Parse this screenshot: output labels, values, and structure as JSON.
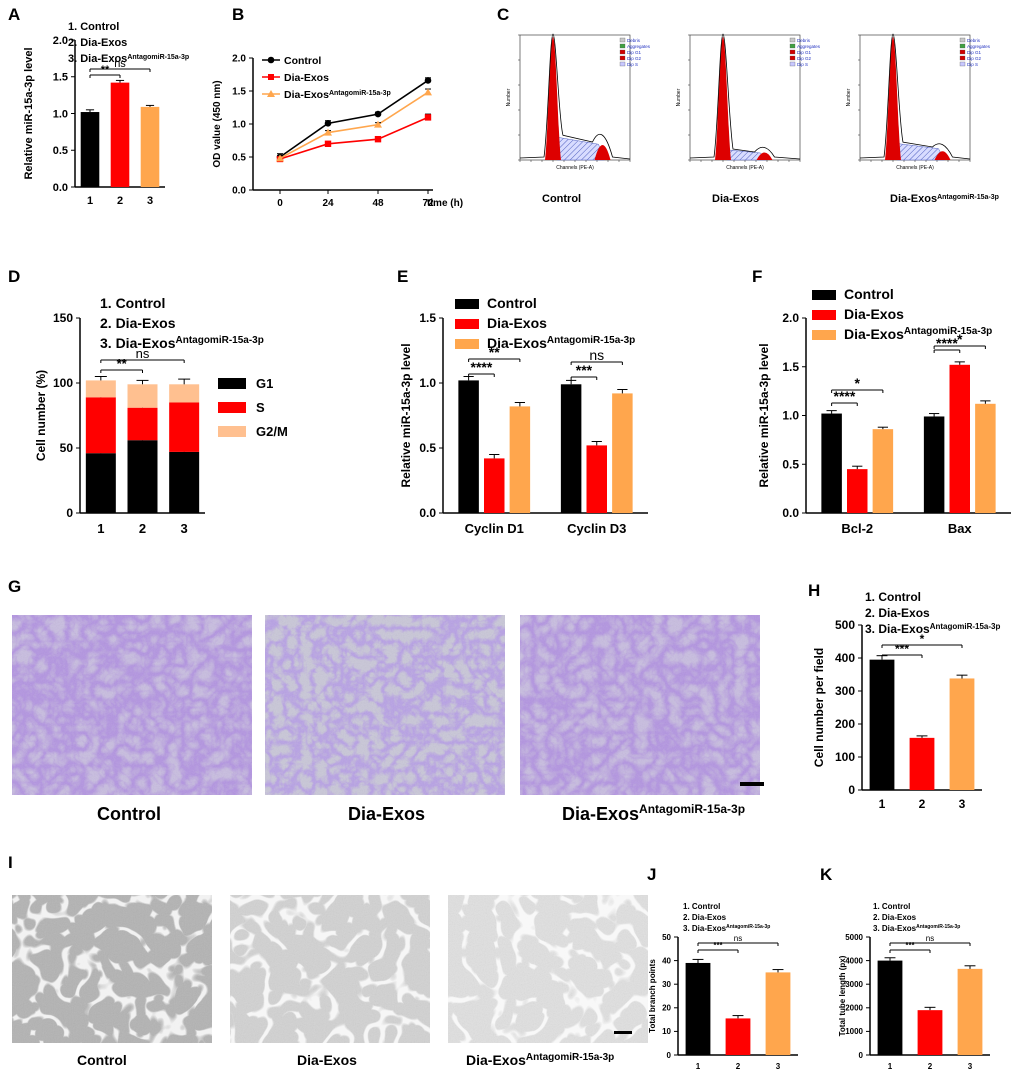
{
  "figure": {
    "sup": "AntagomiR-15a-3p",
    "micro": {
      "Control": "Control",
      "Dia-Exos": "Dia-Exos"
    }
  },
  "chart_data": [
    {
      "id": "A",
      "panel_label": "A",
      "type": "bar",
      "categories": [
        "1",
        "2",
        "3"
      ],
      "values": [
        1.02,
        1.42,
        1.09
      ],
      "errors": [
        0.03,
        0.03,
        0.02
      ],
      "colors": [
        "#000000",
        "#ff0000",
        "#ffa64d"
      ],
      "ylabel": "Relative miR-15a-3p level",
      "ylim": [
        0,
        2.0
      ],
      "yticks": [
        "0.0",
        "0.5",
        "1.0",
        "1.5",
        "2.0"
      ],
      "legend": [
        "1. Control",
        "2. Dia-Exos",
        "3. Dia-Exos"
      ],
      "significance": [
        {
          "pair": [
            1,
            2
          ],
          "label": "**"
        },
        {
          "pair": [
            1,
            3
          ],
          "label": "ns"
        }
      ]
    },
    {
      "id": "B",
      "panel_label": "B",
      "type": "line",
      "x": [
        0,
        24,
        48,
        72
      ],
      "xticks": [
        "0",
        "24",
        "48",
        "72"
      ],
      "xlabel": "time (h)",
      "ylabel": "OD value (450 nm)",
      "ylim": [
        0,
        2.0
      ],
      "yticks": [
        "0.0",
        "0.5",
        "1.0",
        "1.5",
        "2.0"
      ],
      "series": [
        {
          "name": "Control",
          "values": [
            0.5,
            1.01,
            1.15,
            1.66
          ],
          "errors": [
            0.05,
            0.04,
            0.03,
            0.04
          ],
          "color": "#000000",
          "marker": "circle"
        },
        {
          "name": "Dia-Exos",
          "values": [
            0.47,
            0.7,
            0.77,
            1.1
          ],
          "errors": [
            0.04,
            0.03,
            0.03,
            0.05
          ],
          "color": "#ff0000",
          "marker": "square"
        },
        {
          "name": "Dia-Exos",
          "values": [
            0.48,
            0.87,
            0.99,
            1.48
          ],
          "errors": [
            0.04,
            0.03,
            0.03,
            0.05
          ],
          "color": "#ffa64d",
          "marker": "triangle"
        }
      ]
    },
    {
      "id": "C",
      "panel_label": "C",
      "type": "area",
      "legend_items": [
        "Debris",
        "Aggregates",
        "Dip G1",
        "Dip G2",
        "Dip S"
      ],
      "legend_colors": [
        "#c8c8c8",
        "#40a040",
        "#d00000",
        "#d00000",
        "#c8c8ff"
      ],
      "ylabel": "Number",
      "xlabel": "Channels (PE-A)",
      "histograms": [
        {
          "name": "Control",
          "g2_height": 0.12,
          "s_height": 0.18
        },
        {
          "name": "Dia-Exos",
          "g2_height": 0.06,
          "s_height": 0.08
        },
        {
          "name": "Dia-Exos",
          "g2_height": 0.07,
          "s_height": 0.13
        }
      ]
    },
    {
      "id": "D",
      "panel_label": "D",
      "type": "bar",
      "categories": [
        "1",
        "2",
        "3"
      ],
      "series": [
        {
          "name": "G1",
          "values": [
            46,
            56,
            47
          ],
          "color": "#000000"
        },
        {
          "name": "S",
          "values": [
            43,
            25,
            38
          ],
          "color": "#ff0000"
        },
        {
          "name": "G2/M",
          "values": [
            13,
            18,
            14
          ],
          "color": "#ffc090"
        }
      ],
      "errors": [
        [
          3,
          3,
          3
        ],
        [
          3,
          3,
          3
        ],
        [
          3,
          3,
          4
        ]
      ],
      "ylabel": "Cell number (%)",
      "ylim": [
        0,
        150
      ],
      "yticks": [
        "0",
        "50",
        "100",
        "150"
      ],
      "legend": [
        "1. Control",
        "2. Dia-Exos",
        "3. Dia-Exos"
      ],
      "significance": [
        {
          "pair": [
            1,
            2
          ],
          "label": "**"
        },
        {
          "pair": [
            1,
            3
          ],
          "label": "ns"
        }
      ]
    },
    {
      "id": "E",
      "panel_label": "E",
      "type": "bar",
      "categories": [
        "Cyclin D1",
        "Cyclin D3"
      ],
      "series": [
        {
          "name": "Control",
          "values": [
            1.02,
            0.99
          ],
          "errors": [
            0.03,
            0.03
          ],
          "color": "#000000"
        },
        {
          "name": "Dia-Exos",
          "values": [
            0.42,
            0.52
          ],
          "errors": [
            0.03,
            0.03
          ],
          "color": "#ff0000"
        },
        {
          "name": "Dia-Exos",
          "values": [
            0.82,
            0.92
          ],
          "errors": [
            0.03,
            0.03
          ],
          "color": "#ffa64d"
        }
      ],
      "ylabel": "Relative miR-15a-3p level",
      "ylim": [
        0,
        1.5
      ],
      "yticks": [
        "0.0",
        "0.5",
        "1.0",
        "1.5"
      ],
      "significance": [
        {
          "group": 0,
          "pair": [
            0,
            1
          ],
          "label": "****"
        },
        {
          "group": 0,
          "pair": [
            0,
            2
          ],
          "label": "**"
        },
        {
          "group": 1,
          "pair": [
            0,
            1
          ],
          "label": "***"
        },
        {
          "group": 1,
          "pair": [
            0,
            2
          ],
          "label": "ns"
        }
      ]
    },
    {
      "id": "F",
      "panel_label": "F",
      "type": "bar",
      "categories": [
        "Bcl-2",
        "Bax"
      ],
      "series": [
        {
          "name": "Control",
          "values": [
            1.02,
            0.99
          ],
          "errors": [
            0.03,
            0.03
          ],
          "color": "#000000"
        },
        {
          "name": "Dia-Exos",
          "values": [
            0.45,
            1.52
          ],
          "errors": [
            0.03,
            0.03
          ],
          "color": "#ff0000"
        },
        {
          "name": "Dia-Exos",
          "values": [
            0.86,
            1.12
          ],
          "errors": [
            0.02,
            0.03
          ],
          "color": "#ffa64d"
        }
      ],
      "ylabel": "Relative miR-15a-3p level",
      "ylim": [
        0,
        2.0
      ],
      "yticks": [
        "0.0",
        "0.5",
        "1.0",
        "1.5",
        "2.0"
      ],
      "significance": [
        {
          "group": 0,
          "pair": [
            0,
            1
          ],
          "label": "****"
        },
        {
          "group": 0,
          "pair": [
            0,
            2
          ],
          "label": "*"
        },
        {
          "group": 1,
          "pair": [
            0,
            1
          ],
          "label": "****"
        },
        {
          "group": 1,
          "pair": [
            0,
            2
          ],
          "label": "*"
        }
      ]
    },
    {
      "id": "G",
      "panel_label": "G",
      "type": "table",
      "images": [
        "Control",
        "Dia-Exos",
        "Dia-Exos"
      ]
    },
    {
      "id": "H",
      "panel_label": "H",
      "type": "bar",
      "categories": [
        "1",
        "2",
        "3"
      ],
      "values": [
        395,
        158,
        338
      ],
      "errors": [
        12,
        6,
        10
      ],
      "colors": [
        "#000000",
        "#ff0000",
        "#ffa64d"
      ],
      "ylabel": "Cell number per field",
      "ylim": [
        0,
        500
      ],
      "yticks": [
        "0",
        "100",
        "200",
        "300",
        "400",
        "500"
      ],
      "legend": [
        "1. Control",
        "2. Dia-Exos",
        "3. Dia-Exos"
      ],
      "significance": [
        {
          "pair": [
            1,
            2
          ],
          "label": "***"
        },
        {
          "pair": [
            1,
            3
          ],
          "label": "*"
        }
      ]
    },
    {
      "id": "I",
      "panel_label": "I",
      "type": "table",
      "images": [
        "Control",
        "Dia-Exos",
        "Dia-Exos"
      ]
    },
    {
      "id": "J",
      "panel_label": "J",
      "type": "bar",
      "categories": [
        "1",
        "2",
        "3"
      ],
      "values": [
        39,
        15.5,
        35
      ],
      "errors": [
        1.5,
        1.2,
        1.2
      ],
      "colors": [
        "#000000",
        "#ff0000",
        "#ffa64d"
      ],
      "ylabel": "Total branch points",
      "ylim": [
        0,
        50
      ],
      "yticks": [
        "0",
        "10",
        "20",
        "30",
        "40",
        "50"
      ],
      "legend": [
        "1. Control",
        "2. Dia-Exos",
        "3. Dia-Exos"
      ],
      "significance": [
        {
          "pair": [
            1,
            2
          ],
          "label": "***"
        },
        {
          "pair": [
            1,
            3
          ],
          "label": "ns"
        }
      ]
    },
    {
      "id": "K",
      "panel_label": "K",
      "type": "bar",
      "categories": [
        "1",
        "2",
        "3"
      ],
      "values": [
        4000,
        1900,
        3650
      ],
      "errors": [
        120,
        120,
        130
      ],
      "colors": [
        "#000000",
        "#ff0000",
        "#ffa64d"
      ],
      "ylabel": "Total tube length (px)",
      "ylim": [
        0,
        5000
      ],
      "yticks": [
        "0",
        "1000",
        "2000",
        "3000",
        "4000",
        "5000"
      ],
      "legend": [
        "1. Control",
        "2. Dia-Exos",
        "3. Dia-Exos"
      ],
      "significance": [
        {
          "pair": [
            1,
            2
          ],
          "label": "***"
        },
        {
          "pair": [
            1,
            3
          ],
          "label": "ns"
        }
      ]
    }
  ]
}
